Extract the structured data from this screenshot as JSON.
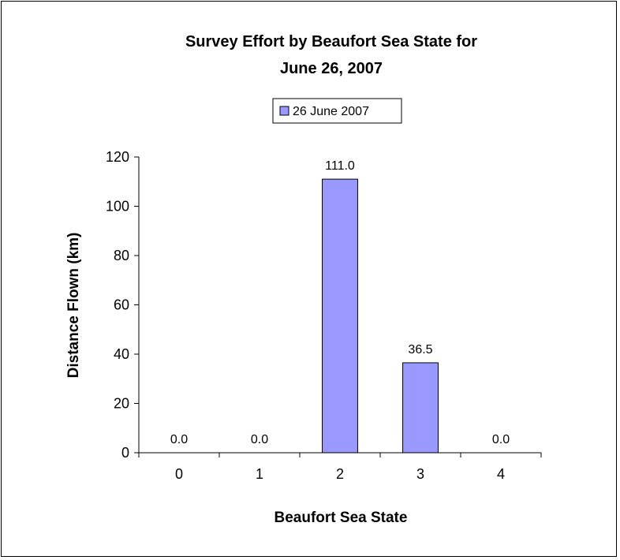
{
  "chart_data": {
    "type": "bar",
    "title_lines": [
      "Survey Effort by Beaufort Sea State for",
      "June 26, 2007"
    ],
    "xlabel": "Beaufort Sea State",
    "ylabel": "Distance Flown (km)",
    "categories": [
      "0",
      "1",
      "2",
      "3",
      "4"
    ],
    "series": [
      {
        "name": "26 June 2007",
        "values": [
          0.0,
          0.0,
          111.0,
          36.5,
          0.0
        ],
        "color": "#9999ff"
      }
    ],
    "data_labels": [
      "0.0",
      "0.0",
      "111.0",
      "36.5",
      "0.0"
    ],
    "ylim": [
      0,
      120
    ],
    "yticks": [
      0,
      20,
      40,
      60,
      80,
      100,
      120
    ],
    "legend_position": "top-center",
    "grid": false
  }
}
